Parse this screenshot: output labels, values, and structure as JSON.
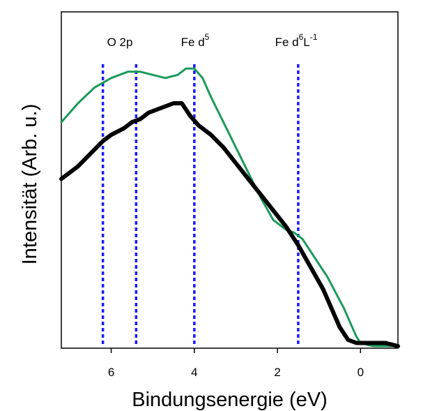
{
  "chart_data": {
    "type": "line",
    "title": "",
    "xlabel": "Bindungsenergie (eV)",
    "ylabel": "Intensität (Arb. u.)",
    "xlim": [
      7.2,
      -0.9
    ],
    "ylim": [
      0,
      1
    ],
    "x_reversed": true,
    "y_ticks_shown": false,
    "xticks": [
      6,
      4,
      2,
      0
    ],
    "grid": false,
    "legend": "none",
    "annotations": [
      {
        "text": "O 2p",
        "x": 5.8
      },
      {
        "text": "Fe d",
        "sup": "5",
        "x": 4.0
      },
      {
        "text": "Fe d",
        "sup": "6",
        "sub_text": "L",
        "sup2": "-1",
        "x": 1.5
      }
    ],
    "vlines": {
      "x": [
        6.2,
        5.4,
        4.0,
        1.5
      ],
      "color": "#1a1aff",
      "style": "dotted"
    },
    "series": [
      {
        "color": "#1a9a5a",
        "x": [
          7.2,
          6.8,
          6.4,
          6.0,
          5.6,
          5.3,
          5.0,
          4.7,
          4.4,
          4.2,
          4.0,
          3.8,
          3.6,
          3.3,
          3.0,
          2.7,
          2.4,
          2.1,
          1.8,
          1.6,
          1.4,
          1.2,
          1.0,
          0.8,
          0.6,
          0.4,
          0.2,
          0.1,
          0.0,
          -0.3,
          -0.9
        ],
        "y": [
          0.71,
          0.77,
          0.82,
          0.85,
          0.87,
          0.87,
          0.86,
          0.85,
          0.86,
          0.88,
          0.88,
          0.85,
          0.79,
          0.71,
          0.63,
          0.55,
          0.47,
          0.4,
          0.37,
          0.36,
          0.34,
          0.3,
          0.26,
          0.22,
          0.17,
          0.12,
          0.06,
          0.03,
          0.01,
          0.0,
          0.0
        ]
      },
      {
        "color": "#000000",
        "x": [
          7.2,
          6.8,
          6.5,
          6.2,
          6.0,
          5.7,
          5.5,
          5.3,
          5.1,
          4.9,
          4.7,
          4.5,
          4.3,
          4.1,
          3.9,
          3.6,
          3.3,
          3.0,
          2.7,
          2.4,
          2.1,
          1.8,
          1.5,
          1.2,
          0.9,
          0.7,
          0.5,
          0.3,
          0.1,
          0.0,
          -0.3,
          -0.6,
          -0.9
        ],
        "y": [
          0.53,
          0.57,
          0.61,
          0.65,
          0.67,
          0.69,
          0.71,
          0.72,
          0.74,
          0.75,
          0.76,
          0.77,
          0.77,
          0.73,
          0.7,
          0.67,
          0.63,
          0.58,
          0.53,
          0.48,
          0.43,
          0.38,
          0.32,
          0.25,
          0.18,
          0.12,
          0.06,
          0.02,
          0.01,
          0.01,
          0.01,
          0.01,
          0.0
        ]
      }
    ]
  }
}
